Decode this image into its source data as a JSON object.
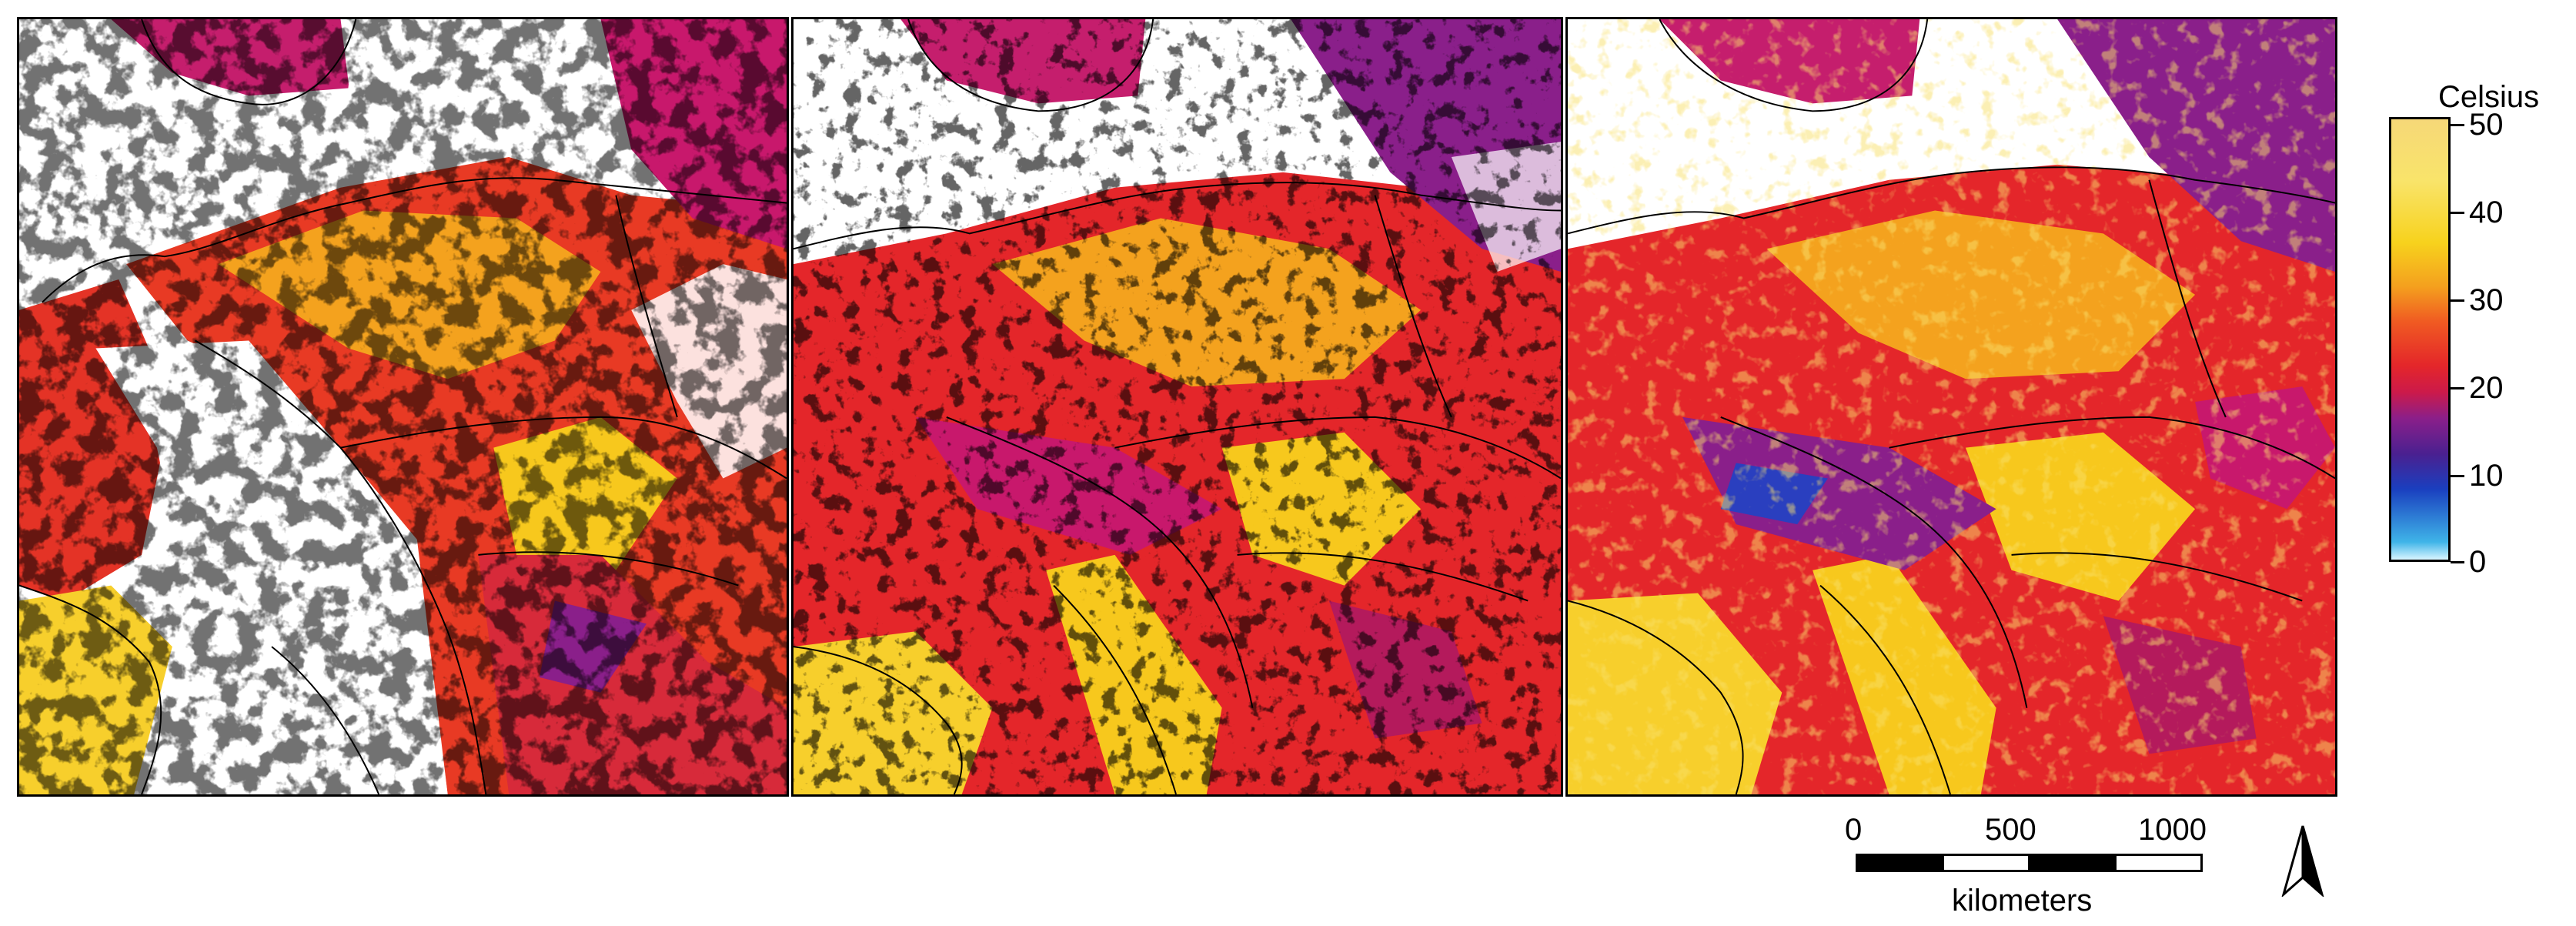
{
  "panels": [
    {
      "id": "panel-1"
    },
    {
      "id": "panel-2"
    },
    {
      "id": "panel-3"
    }
  ],
  "legend": {
    "title": "Celsius",
    "ticks": [
      {
        "value": 50,
        "label": "50"
      },
      {
        "value": 40,
        "label": "40"
      },
      {
        "value": 30,
        "label": "30"
      },
      {
        "value": 20,
        "label": "20"
      },
      {
        "value": 10,
        "label": "10"
      },
      {
        "value": 0,
        "label": "0"
      }
    ],
    "colors": [
      "#d9f6ff",
      "#3fb4e8",
      "#1a3fbf",
      "#8a1f8a",
      "#e4262a",
      "#f4a01e",
      "#f7d21d",
      "#f6d878"
    ]
  },
  "scale": {
    "unit": "kilometers",
    "labels": [
      "0",
      "500",
      "1000"
    ]
  },
  "north_arrow": {
    "icon": "north-arrow-icon"
  }
}
